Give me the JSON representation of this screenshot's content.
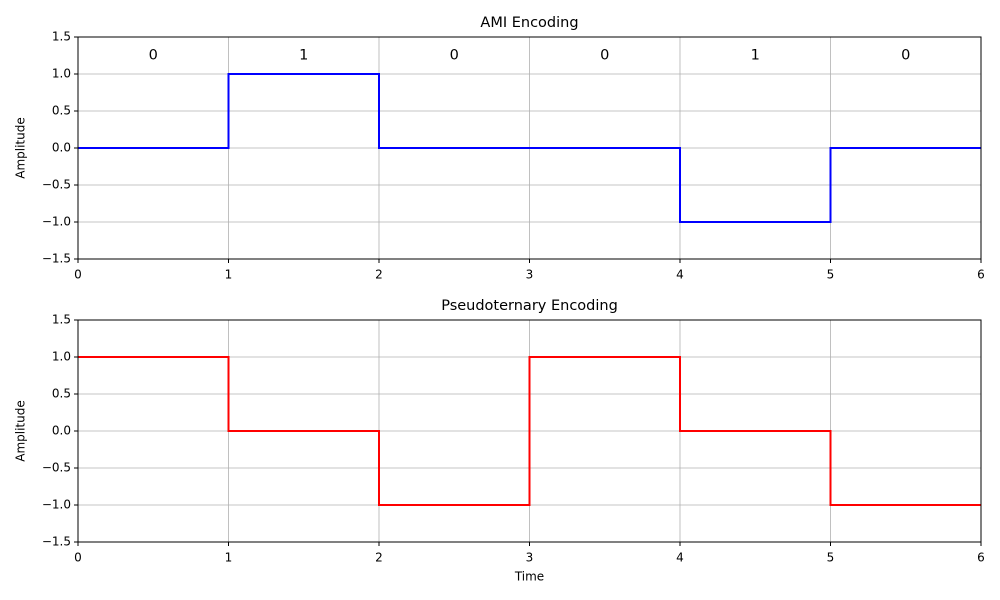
{
  "chart_data": [
    {
      "type": "line",
      "title": "AMI Encoding",
      "ylabel": "Amplitude",
      "x": [
        0,
        1,
        1,
        2,
        2,
        3,
        3,
        4,
        4,
        5,
        5,
        6
      ],
      "values": [
        0,
        0,
        1,
        1,
        0,
        0,
        0,
        0,
        -1,
        -1,
        0,
        0
      ],
      "color": "#0000ff",
      "xlim": [
        0,
        6
      ],
      "xticks": [
        0,
        1,
        2,
        3,
        4,
        5,
        6
      ],
      "ylim": [
        -1.5,
        1.5
      ],
      "yticks": [
        {
          "value": -1.5,
          "label": "−1.5"
        },
        {
          "value": -1,
          "label": "−1.0"
        },
        {
          "value": -0.5,
          "label": "−0.5"
        },
        {
          "value": 0,
          "label": "0.0"
        },
        {
          "value": 0.5,
          "label": "0.5"
        },
        {
          "value": 1,
          "label": "1.0"
        },
        {
          "value": 1.5,
          "label": "1.5"
        }
      ],
      "grid": true,
      "annotations": [
        {
          "text": "0",
          "x": 0.5,
          "y": 1.25
        },
        {
          "text": "1",
          "x": 1.5,
          "y": 1.25
        },
        {
          "text": "0",
          "x": 2.5,
          "y": 1.25
        },
        {
          "text": "0",
          "x": 3.5,
          "y": 1.25
        },
        {
          "text": "1",
          "x": 4.5,
          "y": 1.25
        },
        {
          "text": "0",
          "x": 5.5,
          "y": 1.25
        }
      ]
    },
    {
      "type": "line",
      "title": "Pseudoternary Encoding",
      "ylabel": "Amplitude",
      "xlabel": "Time",
      "x": [
        0,
        1,
        1,
        2,
        2,
        3,
        3,
        4,
        4,
        5,
        5,
        6
      ],
      "values": [
        1,
        1,
        0,
        0,
        -1,
        -1,
        1,
        1,
        0,
        0,
        -1,
        -1
      ],
      "color": "#ff0000",
      "xlim": [
        0,
        6
      ],
      "xticks": [
        0,
        1,
        2,
        3,
        4,
        5,
        6
      ],
      "ylim": [
        -1.5,
        1.5
      ],
      "yticks": [
        {
          "value": -1.5,
          "label": "−1.5"
        },
        {
          "value": -1,
          "label": "−1.0"
        },
        {
          "value": -0.5,
          "label": "−0.5"
        },
        {
          "value": 0,
          "label": "0.0"
        },
        {
          "value": 0.5,
          "label": "0.5"
        },
        {
          "value": 1,
          "label": "1.0"
        },
        {
          "value": 1.5,
          "label": "1.5"
        }
      ],
      "grid": true
    }
  ]
}
